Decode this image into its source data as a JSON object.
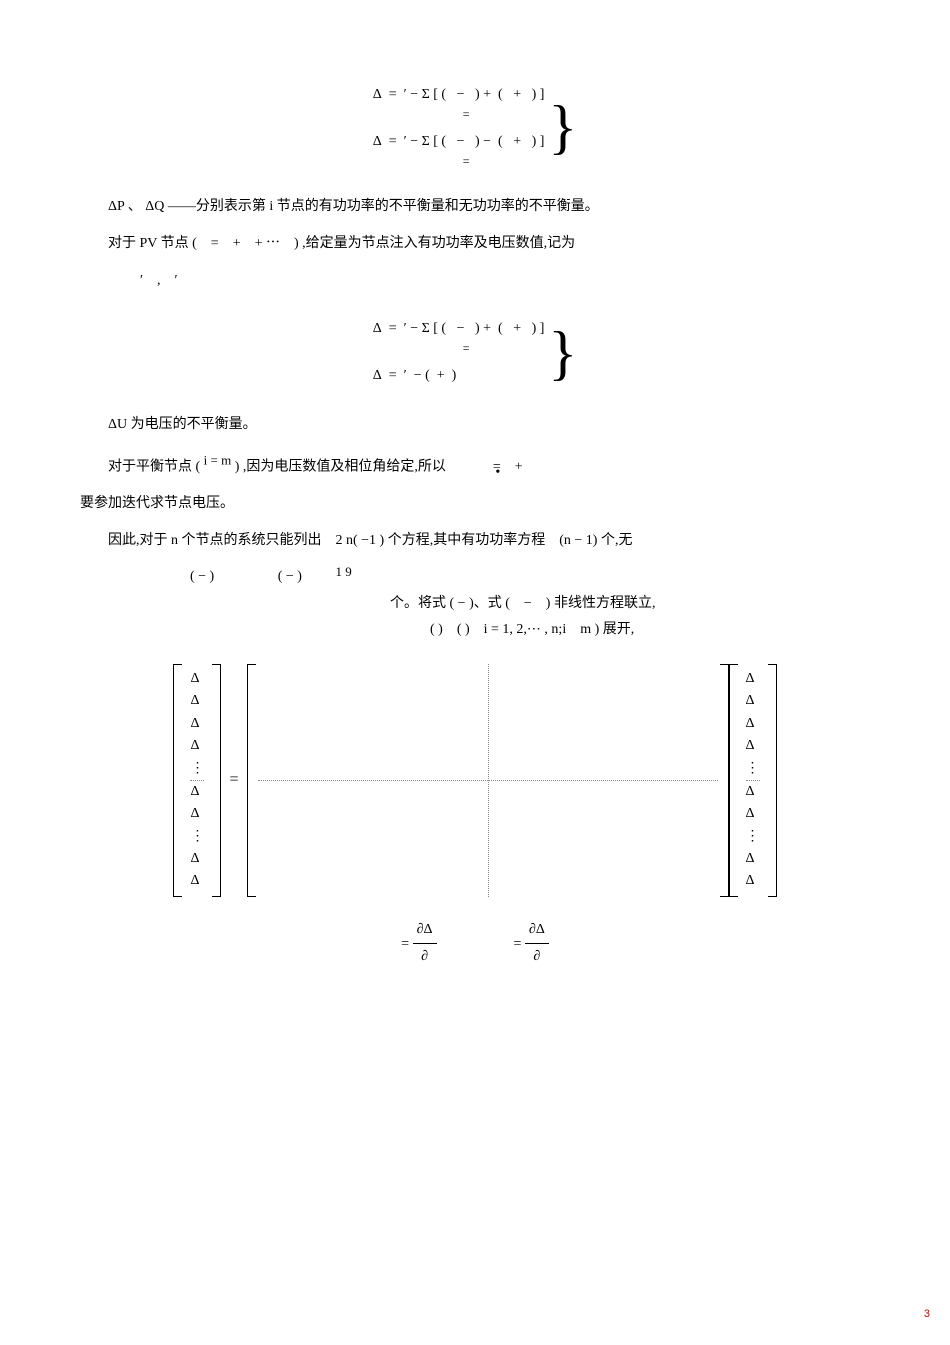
{
  "eq1": {
    "line1": "Δ&nbsp;&nbsp;=&nbsp;&nbsp;′ − Σ&nbsp;[ (&nbsp;&nbsp;&nbsp;−&nbsp;&nbsp;&nbsp;) +&nbsp;&nbsp;(&nbsp;&nbsp;&nbsp;+&nbsp;&nbsp;&nbsp;) ]",
    "line1_under": "=",
    "line2": "Δ&nbsp;&nbsp;=&nbsp;&nbsp;′ − Σ&nbsp;[ (&nbsp;&nbsp;&nbsp;−&nbsp;&nbsp;&nbsp;) −&nbsp;&nbsp;(&nbsp;&nbsp;&nbsp;+&nbsp;&nbsp;&nbsp;) ]",
    "line2_under": "="
  },
  "p1_pre": "ΔP 、 ΔQ ——分别表示第 ",
  "p1_i": "i",
  "p1_post": " 节点的有功功率的不平衡量和无功功率的不平衡量。",
  "p2_pre": "对于 PV 节点 (　=　+　+ ⋯　) ,给定量为节点注入有功功率及电压数值,记为",
  "p2_line2": "′　,　′",
  "eq2": {
    "line1": "Δ&nbsp;&nbsp;=&nbsp;&nbsp;′ − Σ&nbsp;[ (&nbsp;&nbsp;&nbsp;−&nbsp;&nbsp;&nbsp;) +&nbsp;&nbsp;(&nbsp;&nbsp;&nbsp;+&nbsp;&nbsp;&nbsp;) ]",
    "line1_under": "=",
    "line2": "Δ&nbsp;&nbsp;=&nbsp;&nbsp;′&nbsp; − (&nbsp;&nbsp;+&nbsp;&nbsp;)"
  },
  "p3": "ΔU 为电压的不平衡量。",
  "p4_a": "对于平衡节点 ( ",
  "p4_im": "i = m",
  "p4_b": " ) ,因为电压数值及相位角给定,所以",
  "p4_dot": "•",
  "p4_eq": " =　+",
  "p4_c": "要参加迭代求节点电压。",
  "p5_a": "因此,对于 n 个节点的系统只能列出　2 n( −1 ) 个方程,其中有功功率方程　(n − 1) 个,无",
  "p6_block1": "( − )",
  "p6_block2": "( − )",
  "p6_text1": "个。将式 ( ",
  "p6_frac": "1 9",
  "p6_mid": " − ",
  "p6_text2": " )、式 (　−　) 非线性方程联立,",
  "p6_text3": "(  )　(  )　i = 1, 2,⋯ , n;i　m ) 展开,",
  "vec_left": [
    "Δ",
    "Δ",
    "Δ",
    "Δ",
    "⋮",
    "Δ",
    "Δ",
    "⋮",
    "Δ",
    "Δ"
  ],
  "vec_right": [
    "Δ",
    "Δ",
    "Δ",
    "Δ",
    "⋮",
    "Δ",
    "Δ",
    "⋮",
    "Δ",
    "Δ"
  ],
  "partial": {
    "eq1_lhs": "=",
    "eq1_num": "∂Δ",
    "eq1_den": "∂",
    "eq2_lhs": "=",
    "eq2_num": "∂Δ",
    "eq2_den": "∂"
  },
  "pagenum": "3"
}
